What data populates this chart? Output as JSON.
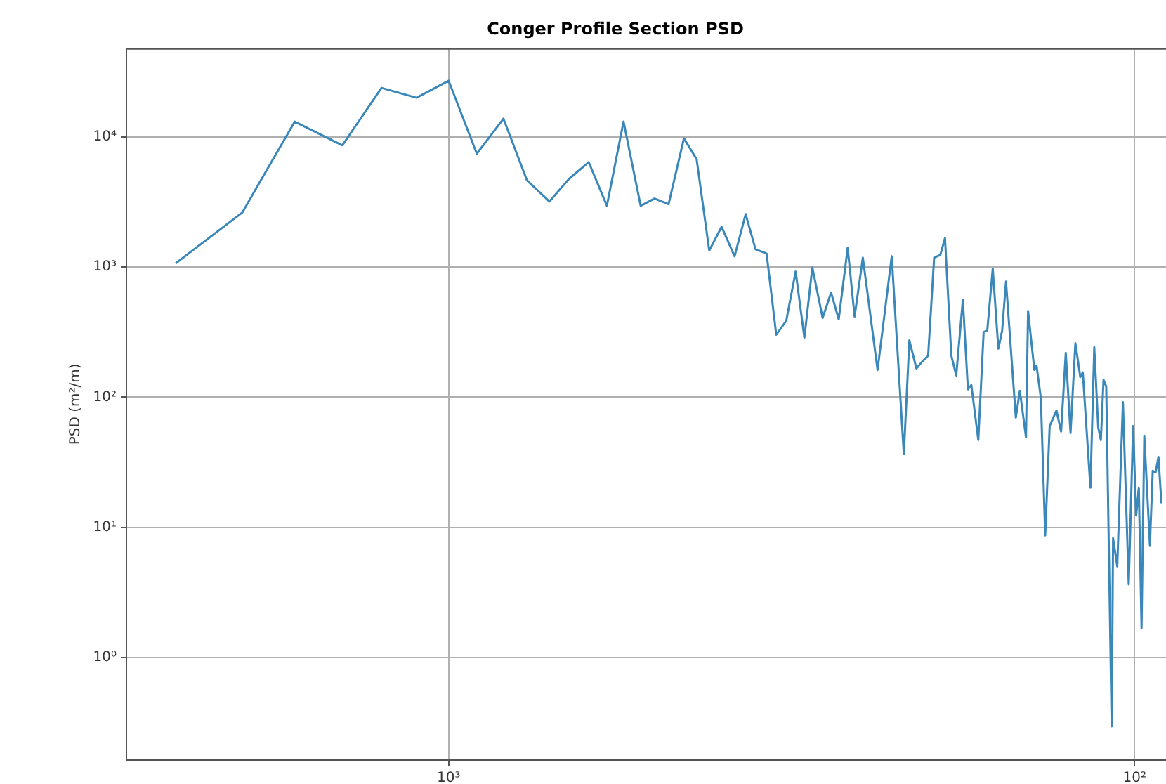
{
  "chart_data": {
    "type": "line",
    "title": "Conger Profile Section PSD",
    "ylabel": "PSD (m²/m)",
    "log": "xy",
    "grid": true,
    "legend": false,
    "marker": "none",
    "line_style": "solid",
    "xlim": [
      2950,
      90
    ],
    "ylim": [
      0.163,
      47900
    ],
    "xticks": [
      {
        "value": 1000,
        "label": "10³"
      },
      {
        "value": 100,
        "label": "10²"
      }
    ],
    "yticks": [
      {
        "value": 1,
        "label": "10⁰"
      },
      {
        "value": 10,
        "label": "10¹"
      },
      {
        "value": 100,
        "label": "10²"
      },
      {
        "value": 1000,
        "label": "10³"
      },
      {
        "value": 10000,
        "label": "10⁴"
      }
    ],
    "series": [
      {
        "color": "#3a87ba",
        "x": [
          2500,
          2000,
          1677,
          1429,
          1253,
          1114,
          1000,
          910,
          832,
          769,
          713,
          668,
          625,
          588,
          556,
          525,
          501,
          478,
          454,
          435,
          417,
          400,
          383,
          369,
          357,
          344,
          333,
          322,
          312,
          303,
          295,
          285,
          277,
          270,
          262,
          256,
          249,
          237,
          226,
          217,
          213,
          208,
          204,
          200,
          196,
          192,
          189,
          185,
          182,
          178,
          175,
          173,
          169,
          166,
          164,
          161,
          158,
          156,
          154,
          149,
          147,
          144,
          143,
          140,
          139,
          137,
          135,
          133,
          130,
          128,
          126,
          124,
          122,
          120,
          119,
          116,
          114.5,
          113,
          112,
          111,
          110,
          108,
          107.5,
          106,
          104,
          102,
          100.5,
          99.5,
          98.6,
          97.7,
          96.8,
          95,
          94.1,
          93.2,
          92.3,
          91.4
        ],
        "values": [
          1070,
          2620,
          13100,
          8620,
          23800,
          20000,
          27000,
          7430,
          13800,
          4640,
          3190,
          4750,
          6400,
          2960,
          13100,
          2960,
          3360,
          3040,
          9750,
          6720,
          1340,
          2040,
          1210,
          2550,
          1370,
          1270,
          302,
          387,
          923,
          287,
          993,
          407,
          636,
          397,
          1405,
          417,
          1180,
          162,
          1210,
          36.6,
          273,
          166,
          188,
          208,
          1180,
          1240,
          1670,
          208,
          147,
          561,
          115,
          124,
          46.9,
          317,
          325,
          970,
          236,
          325,
          774,
          69.8,
          112,
          49.3,
          460,
          162,
          175,
          98.8,
          8.67,
          60.1,
          79.1,
          54.5,
          219,
          53.1,
          260,
          143,
          155,
          20.2,
          242,
          58.6,
          46.9,
          136,
          121,
          0.296,
          8.24,
          5.01,
          91.6,
          3.64,
          60.1,
          12.3,
          20.2,
          1.68,
          50.6,
          7.29,
          27.2,
          26.5,
          34.8,
          15.3
        ]
      }
    ]
  }
}
